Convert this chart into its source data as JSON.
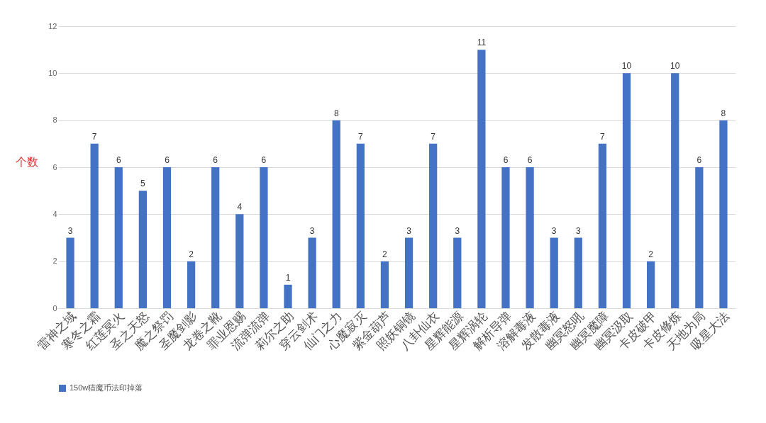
{
  "chart_data": {
    "type": "bar",
    "ylabel": "个数",
    "categories": [
      "雷神之域",
      "寒冬之霜",
      "红莲冥火",
      "圣之天怒",
      "魔之祭罚",
      "圣魔剑影",
      "龙卷之靴",
      "罪业恩赐",
      "流弹流弹",
      "莉尔之助",
      "穿云剑术",
      "仙门之力",
      "心魔寂灭",
      "紫金葫芦",
      "照妖铜镜",
      "八卦仙衣",
      "星辉能源",
      "星辉涡轮",
      "解析导弹",
      "溶解毒液",
      "发散毒液",
      "幽冥怒吼",
      "幽冥魔障",
      "幽冥汲取",
      "卡皮破甲",
      "卡皮修炼",
      "天地为局",
      "吸星大法"
    ],
    "series": [
      {
        "name": "150w猎魔币法印掉落",
        "color": "#4472c4",
        "values": [
          3,
          7,
          6,
          5,
          6,
          2,
          6,
          4,
          6,
          1,
          3,
          8,
          7,
          2,
          3,
          7,
          3,
          11,
          6,
          6,
          3,
          3,
          7,
          10,
          2,
          10,
          6,
          8
        ]
      }
    ],
    "ylim": [
      0,
      12
    ],
    "yticks": [
      0,
      2,
      4,
      6,
      8,
      10,
      12
    ],
    "grid": "y",
    "legend": "bottom",
    "data_labels": true
  }
}
